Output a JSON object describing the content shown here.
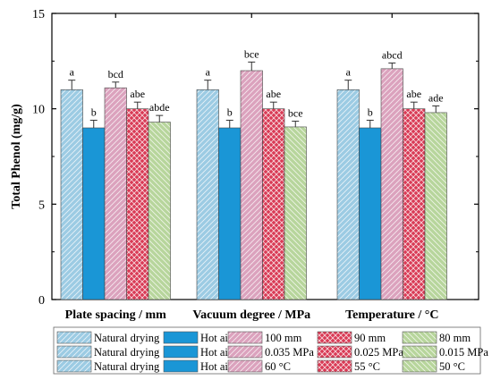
{
  "chart_data": {
    "type": "bar",
    "ylabel": "Total Phenol (mg/g)",
    "ylim": [
      0,
      15
    ],
    "yticks": [
      0,
      5,
      10,
      15
    ],
    "grid": false,
    "legend_position": "bottom",
    "groups": [
      {
        "label": "Plate spacing / mm",
        "bars": [
          {
            "name": "Natural drying",
            "value": 11.0,
            "error": 0.5,
            "letter": "a",
            "pattern": "natural"
          },
          {
            "name": "Hot air",
            "value": 9.0,
            "error": 0.4,
            "letter": "b",
            "pattern": "hotair"
          },
          {
            "name": "100 mm",
            "value": 11.1,
            "error": 0.3,
            "letter": "bcd",
            "pattern": "level1"
          },
          {
            "name": "90 mm",
            "value": 10.0,
            "error": 0.35,
            "letter": "abe",
            "pattern": "level2"
          },
          {
            "name": "80 mm",
            "value": 9.3,
            "error": 0.35,
            "letter": "abde",
            "pattern": "level3"
          }
        ]
      },
      {
        "label": "Vacuum degree / MPa",
        "bars": [
          {
            "name": "Natural drying",
            "value": 11.0,
            "error": 0.5,
            "letter": "a",
            "pattern": "natural"
          },
          {
            "name": "Hot air",
            "value": 9.0,
            "error": 0.4,
            "letter": "b",
            "pattern": "hotair"
          },
          {
            "name": "0.035 MPa",
            "value": 12.0,
            "error": 0.45,
            "letter": "bce",
            "pattern": "level1"
          },
          {
            "name": "0.025 MPa",
            "value": 10.0,
            "error": 0.35,
            "letter": "abe",
            "pattern": "level2"
          },
          {
            "name": "0.015 MPa",
            "value": 9.05,
            "error": 0.3,
            "letter": "bce",
            "pattern": "level3"
          }
        ]
      },
      {
        "label": "Temperature / °C",
        "bars": [
          {
            "name": "Natural drying",
            "value": 11.0,
            "error": 0.5,
            "letter": "a",
            "pattern": "natural"
          },
          {
            "name": "Hot air",
            "value": 9.0,
            "error": 0.4,
            "letter": "b",
            "pattern": "hotair"
          },
          {
            "name": "60 °C",
            "value": 12.1,
            "error": 0.3,
            "letter": "abcd",
            "pattern": "level1"
          },
          {
            "name": "55 °C",
            "value": 10.0,
            "error": 0.35,
            "letter": "abe",
            "pattern": "level2"
          },
          {
            "name": "50 °C",
            "value": 9.8,
            "error": 0.35,
            "letter": "ade",
            "pattern": "level3"
          }
        ]
      }
    ],
    "legend_rows": [
      [
        {
          "label": "Natural drying",
          "pattern": "natural"
        },
        {
          "label": "Hot air",
          "pattern": "hotair"
        },
        {
          "label": "100 mm",
          "pattern": "level1"
        },
        {
          "label": "90 mm",
          "pattern": "level2"
        },
        {
          "label": "80 mm",
          "pattern": "level3"
        }
      ],
      [
        {
          "label": "Natural drying",
          "pattern": "natural"
        },
        {
          "label": "Hot air",
          "pattern": "hotair"
        },
        {
          "label": "0.035 MPa",
          "pattern": "level1"
        },
        {
          "label": "0.025 MPa",
          "pattern": "level2"
        },
        {
          "label": "0.015 MPa",
          "pattern": "level3"
        }
      ],
      [
        {
          "label": "Natural drying",
          "pattern": "natural"
        },
        {
          "label": "Hot air",
          "pattern": "hotair"
        },
        {
          "label": "60 °C",
          "pattern": "level1"
        },
        {
          "label": "55 °C",
          "pattern": "level2"
        },
        {
          "label": "50 °C",
          "pattern": "level3"
        }
      ]
    ],
    "colors": {
      "natural": "#9ccbe3",
      "hotair": "#1a96d6",
      "level1": "#dba2bd",
      "level2": "#d93a55",
      "level3": "#b7d59c"
    }
  }
}
